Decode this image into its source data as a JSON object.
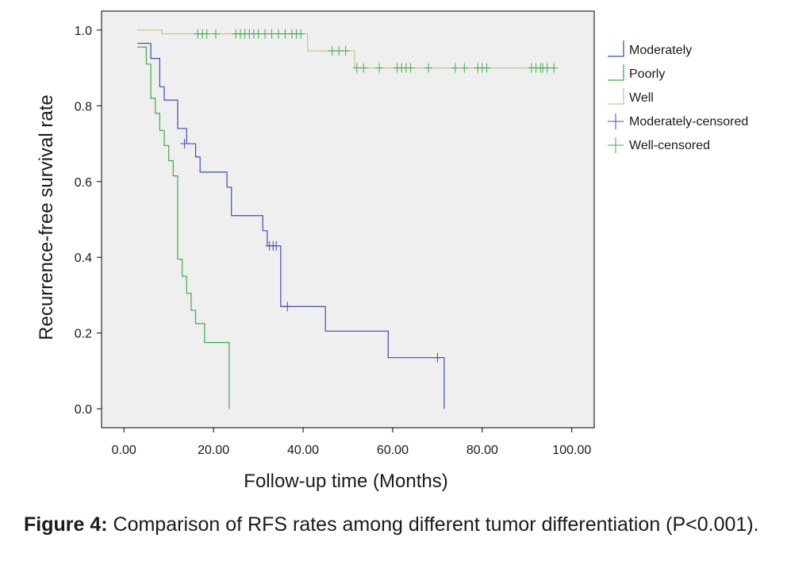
{
  "chart_data": {
    "type": "line",
    "subtype": "kaplan-meier step",
    "xlabel": "Follow-up time (Months)",
    "ylabel": "Recurrence-free survival rate",
    "xlim": [
      -5,
      105
    ],
    "ylim": [
      -0.05,
      1.05
    ],
    "x_ticks": [
      0,
      20,
      40,
      60,
      80,
      100
    ],
    "x_tick_labels": [
      "0.00",
      "20.00",
      "40.00",
      "60.00",
      "80.00",
      "100.00"
    ],
    "y_ticks": [
      0,
      0.2,
      0.4,
      0.6,
      0.8,
      1.0
    ],
    "y_tick_labels": [
      "0.0",
      "0.2",
      "0.4",
      "0.6",
      "0.8",
      "1.0"
    ],
    "grid": false,
    "legend_position": "right",
    "plot_background": "#efefef",
    "series": [
      {
        "name": "Moderately",
        "color": "#3a4fb5",
        "x": [
          3,
          6,
          8,
          9,
          12,
          14,
          16,
          17,
          23,
          24,
          31,
          32,
          35,
          36,
          45,
          59,
          64,
          71.5,
          71.5
        ],
        "y": [
          0.965,
          0.925,
          0.85,
          0.815,
          0.74,
          0.7,
          0.665,
          0.625,
          0.585,
          0.51,
          0.47,
          0.43,
          0.27,
          0.27,
          0.205,
          0.135,
          0.135,
          0.135,
          0.0
        ]
      },
      {
        "name": "Poorly",
        "color": "#3cae49",
        "x": [
          3,
          5,
          6,
          7,
          8,
          9,
          10,
          11,
          12,
          13,
          14,
          15,
          16,
          18,
          20,
          23.5,
          23.5
        ],
        "y": [
          0.955,
          0.91,
          0.82,
          0.78,
          0.735,
          0.695,
          0.655,
          0.615,
          0.395,
          0.35,
          0.305,
          0.26,
          0.225,
          0.175,
          0.175,
          0.175,
          0.0
        ]
      },
      {
        "name": "Well",
        "color": "#c9c490",
        "x": [
          3,
          8.5,
          41,
          51.5,
          96
        ],
        "y": [
          1.0,
          0.99,
          0.945,
          0.9,
          0.9
        ]
      },
      {
        "name": "Moderately-censored",
        "color": "#3a4fb5",
        "marker": "+",
        "x": [
          13.5,
          32.5,
          33.3,
          34,
          36.5,
          70
        ],
        "y": [
          0.7,
          0.43,
          0.43,
          0.43,
          0.27,
          0.135
        ]
      },
      {
        "name": "Well-censored",
        "color": "#3cae49",
        "marker": "+",
        "x": [
          16.5,
          17.5,
          18.5,
          20.5,
          25,
          26,
          27,
          28,
          29,
          30,
          31.5,
          33,
          34.5,
          36,
          37.5,
          38.5,
          39.5,
          46.5,
          48,
          49.5,
          52,
          53.5,
          57,
          61,
          62,
          63,
          64,
          68,
          74,
          76,
          79,
          80,
          81,
          91,
          92,
          93,
          93.5,
          94.5,
          96
        ],
        "y": [
          0.99,
          0.99,
          0.99,
          0.99,
          0.99,
          0.99,
          0.99,
          0.99,
          0.99,
          0.99,
          0.99,
          0.99,
          0.99,
          0.99,
          0.99,
          0.99,
          0.99,
          0.945,
          0.945,
          0.945,
          0.9,
          0.9,
          0.9,
          0.9,
          0.9,
          0.9,
          0.9,
          0.9,
          0.9,
          0.9,
          0.9,
          0.9,
          0.9,
          0.9,
          0.9,
          0.9,
          0.9,
          0.9,
          0.9
        ]
      }
    ]
  },
  "caption": {
    "label": "Figure 4:",
    "text": " Comparison of RFS rates among different tumor differentiation (P<0.001)."
  }
}
